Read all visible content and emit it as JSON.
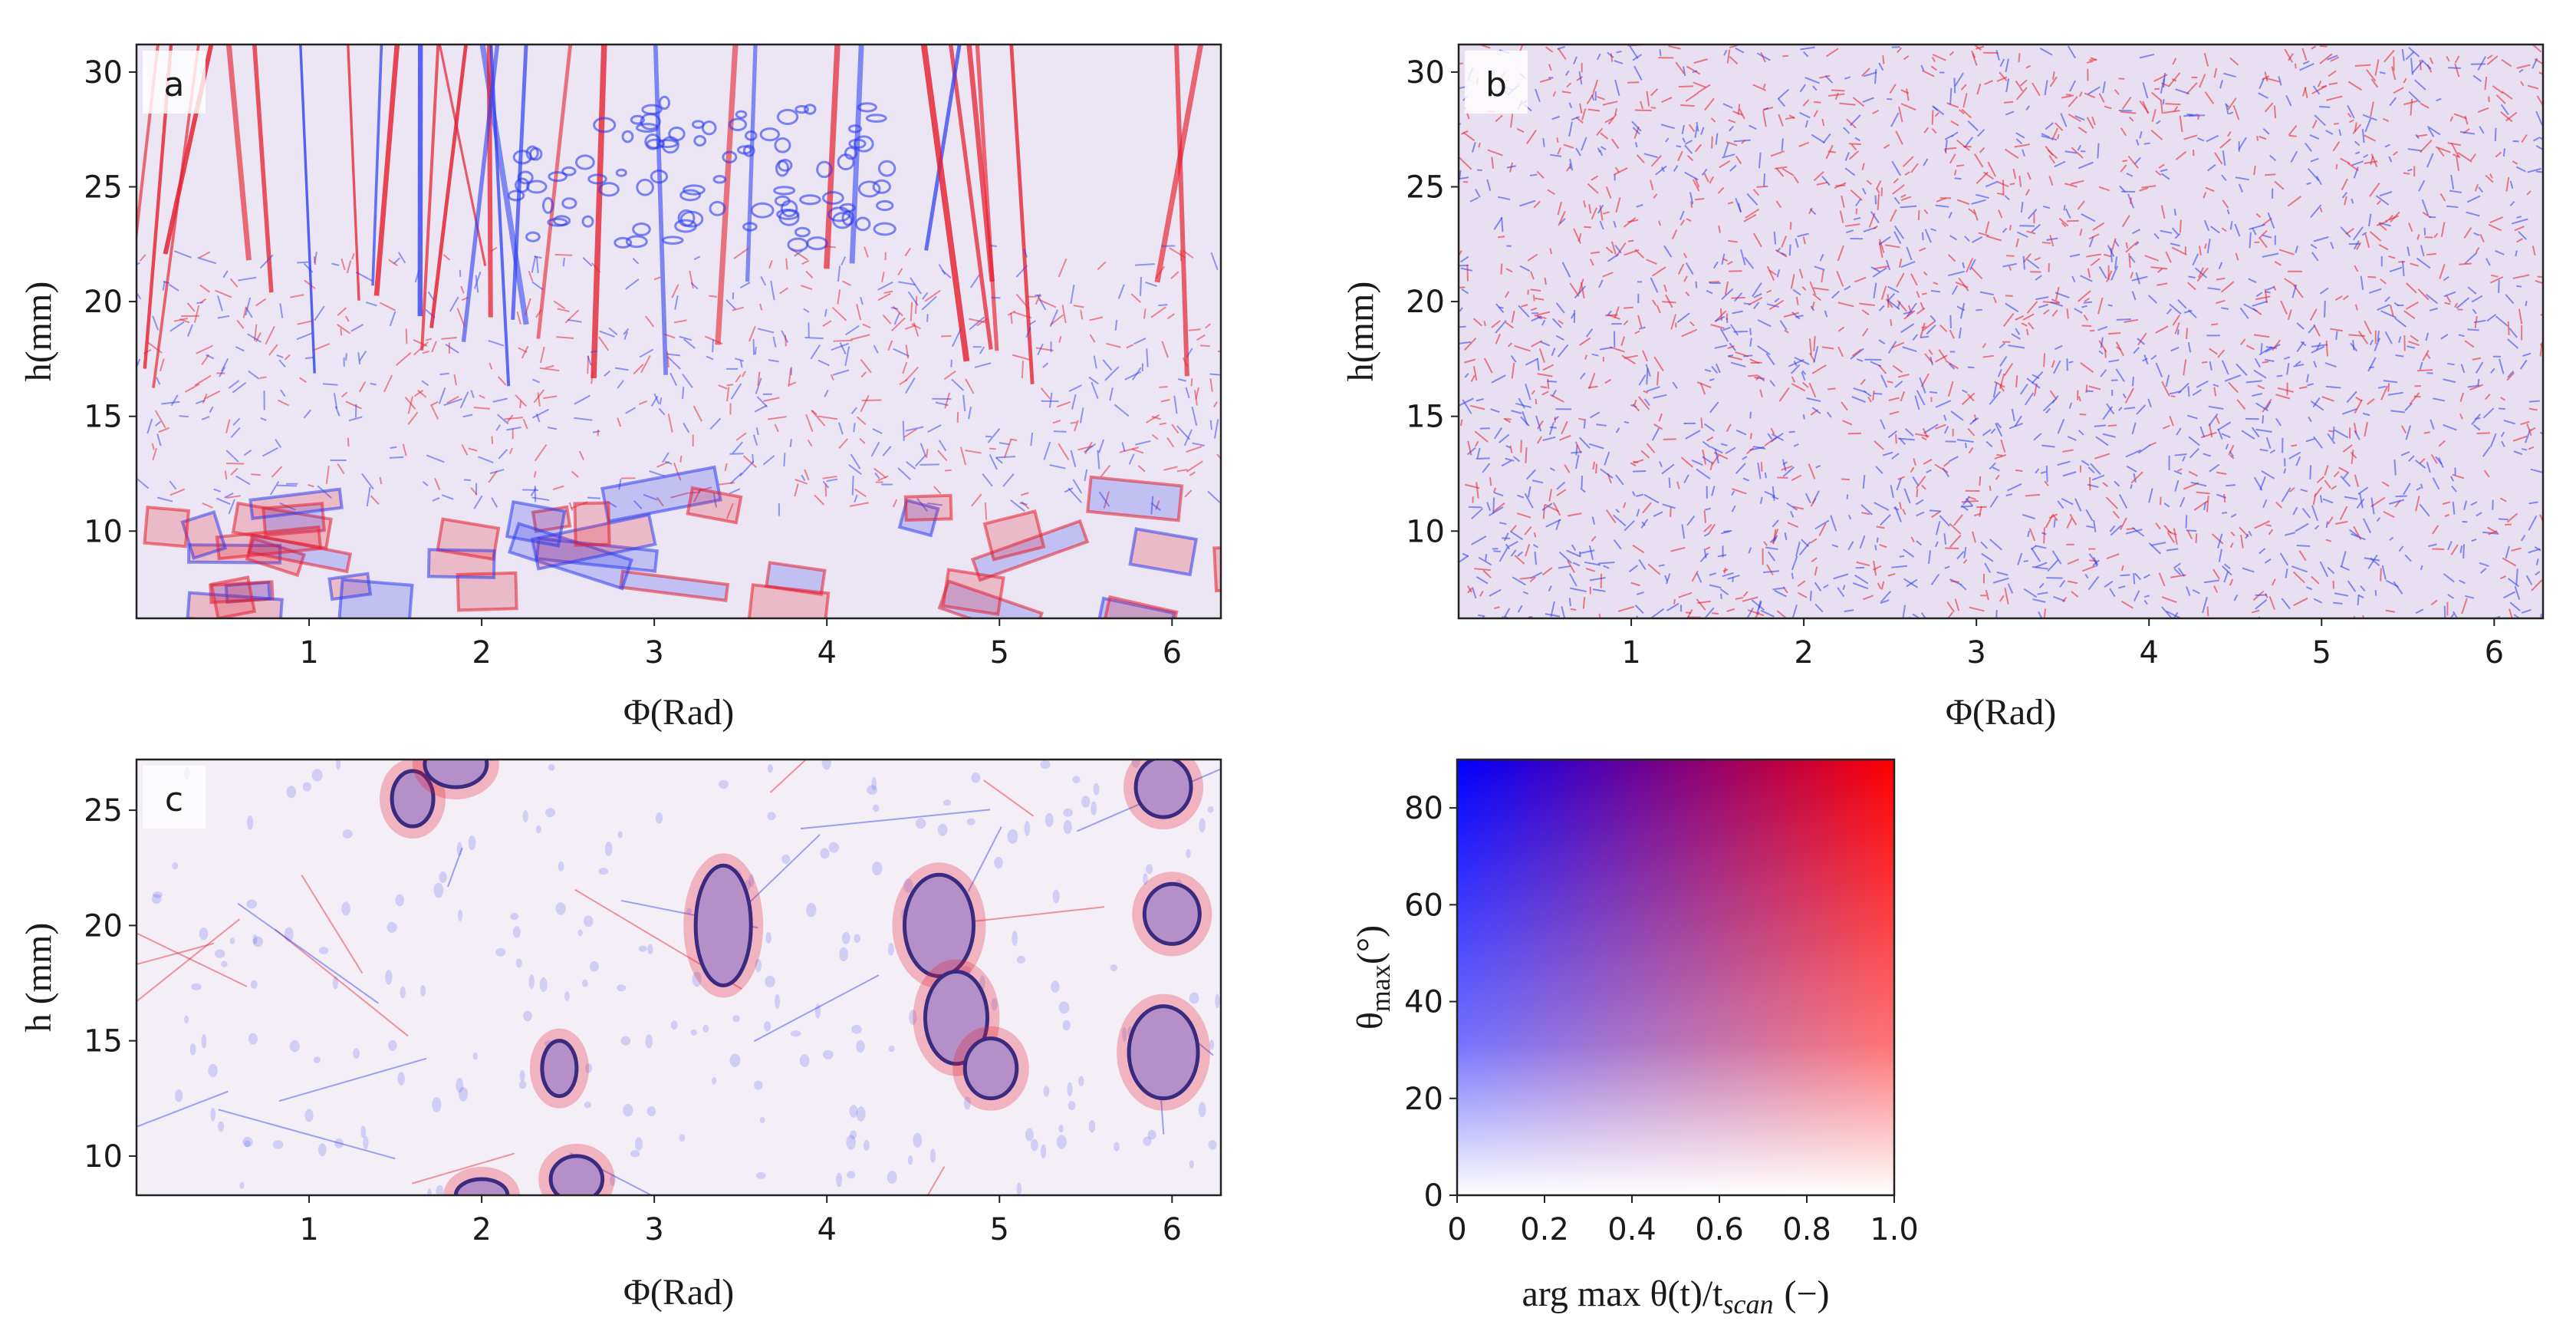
{
  "chart_data": [
    {
      "type": "heatmap",
      "panel_label": "a",
      "xlabel": "Φ(Rad)",
      "ylabel": "h(mm)",
      "xlim": [
        0,
        6.283
      ],
      "ylim": [
        6.2,
        31.2
      ],
      "xticks": [
        1,
        2,
        3,
        4,
        5,
        6
      ],
      "yticks": [
        10,
        15,
        20,
        25,
        30
      ],
      "texture": "large-grain",
      "seed": 11
    },
    {
      "type": "heatmap",
      "panel_label": "b",
      "xlabel": "Φ(Rad)",
      "ylabel": "h(mm)",
      "xlim": [
        0,
        6.283
      ],
      "ylim": [
        6.2,
        31.2
      ],
      "xticks": [
        1,
        2,
        3,
        4,
        5,
        6
      ],
      "yticks": [
        10,
        15,
        20,
        25,
        30
      ],
      "texture": "fine-grain",
      "seed": 23
    },
    {
      "type": "heatmap",
      "panel_label": "c",
      "xlabel": "Φ(Rad)",
      "ylabel": "h (mm)",
      "xlim": [
        0,
        6.283
      ],
      "ylim": [
        8.3,
        27.2
      ],
      "xticks": [
        1,
        2,
        3,
        4,
        5,
        6
      ],
      "yticks": [
        10,
        15,
        20,
        25
      ],
      "texture": "equiaxed-with-pores",
      "seed": 37
    },
    {
      "type": "colormap-legend",
      "xlabel_text": "arg max θ(t)/t",
      "xlabel_sub": "scan",
      "xlabel_suffix": "(−)",
      "ylabel_text": "θ",
      "ylabel_sub": "max",
      "ylabel_suffix": "(°)",
      "xlim": [
        0,
        1.0
      ],
      "ylim": [
        0,
        90
      ],
      "xticks": [
        "0",
        "0.2",
        "0.4",
        "0.6",
        "0.8",
        "1.0"
      ],
      "yticks": [
        "0",
        "20",
        "40",
        "60",
        "80"
      ],
      "colors": {
        "low_time_high_angle": "#0000ff",
        "high_time_high_angle": "#ff0000",
        "zero_angle": "#ffffff"
      }
    }
  ],
  "colors": {
    "blue": "#2d3cf0",
    "red": "#e61e2d",
    "background": "#ffffff",
    "frame": "#222222"
  }
}
